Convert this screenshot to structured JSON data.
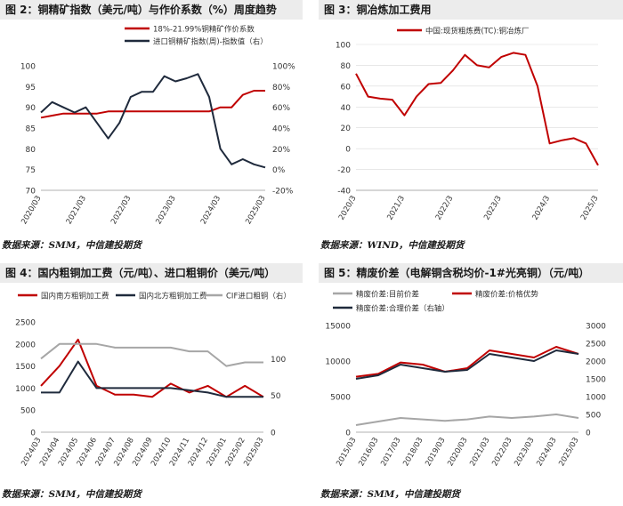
{
  "panels": [
    {
      "title": "图 2：铜精矿指数（美元/吨）与作价系数（%）周度趋势",
      "source": "数据来源：SMM，中信建投期货"
    },
    {
      "title": "图 3：铜冶炼加工费用",
      "source": "数据来源：WIND，中信建投期货"
    },
    {
      "title": "图 4：国内粗铜加工费（元/吨）、进口粗铜价（美元/吨）",
      "source": "数据来源：SMM，中信建投期货"
    },
    {
      "title": "图 5：精废价差（电解铜含税均价-1#光亮铜）（元/吨）",
      "source": "数据来源：SMM，中信建投期货"
    }
  ],
  "chart_data": [
    {
      "type": "line",
      "x": [
        "2020/03",
        "2020/06",
        "2020/09",
        "2020/12",
        "2021/03",
        "2021/06",
        "2021/09",
        "2021/12",
        "2022/03",
        "2022/06",
        "2022/09",
        "2022/12",
        "2023/03",
        "2023/06",
        "2023/09",
        "2023/12",
        "2024/03",
        "2024/06",
        "2024/09",
        "2024/12",
        "2025/03"
      ],
      "x_ticks": [
        "2020/03",
        "2021/03",
        "2022/03",
        "2023/03",
        "2024/03",
        "2025/03"
      ],
      "series": [
        {
          "name": "18%-21.99%铜精矿作价系数",
          "axis": "left",
          "color": "#c00000",
          "values": [
            87.5,
            88,
            88.5,
            88.5,
            88.5,
            88.5,
            89,
            89,
            89,
            89,
            89,
            89,
            89,
            89,
            89,
            89,
            90,
            90,
            93,
            94,
            94
          ]
        },
        {
          "name": "进口铜精矿指数(周)-指数值（右）",
          "axis": "right",
          "color": "#1f2a3c",
          "values": [
            55,
            65,
            60,
            55,
            60,
            45,
            30,
            45,
            70,
            75,
            75,
            90,
            85,
            88,
            92,
            70,
            20,
            5,
            10,
            5,
            2
          ]
        }
      ],
      "y_left": {
        "lim": [
          70,
          100
        ],
        "ticks": [
          70,
          75,
          80,
          85,
          90,
          95,
          100
        ]
      },
      "y_right": {
        "lim": [
          -20,
          100
        ],
        "ticks": [
          "-20%",
          "0%",
          "20%",
          "40%",
          "60%",
          "80%",
          "100%"
        ]
      },
      "legend": "top"
    },
    {
      "type": "line",
      "x": [
        "2020/3",
        "2020/6",
        "2020/9",
        "2020/12",
        "2021/3",
        "2021/6",
        "2021/9",
        "2021/12",
        "2022/3",
        "2022/6",
        "2022/9",
        "2022/12",
        "2023/3",
        "2023/6",
        "2023/9",
        "2023/12",
        "2024/3",
        "2024/6",
        "2024/9",
        "2024/12",
        "2025/3"
      ],
      "x_ticks": [
        "2020/3",
        "2021/3",
        "2022/3",
        "2023/3",
        "2024/3",
        "2025/3"
      ],
      "series": [
        {
          "name": "中国:现货粗炼费(TC):铜冶炼厂",
          "color": "#c00000",
          "values": [
            72,
            50,
            48,
            47,
            32,
            50,
            62,
            63,
            75,
            90,
            80,
            78,
            88,
            92,
            90,
            60,
            5,
            8,
            10,
            5,
            -16
          ]
        }
      ],
      "y_left": {
        "lim": [
          -40,
          100
        ],
        "ticks": [
          -40,
          -20,
          0,
          20,
          40,
          60,
          80,
          100
        ]
      },
      "legend": "top"
    },
    {
      "type": "line",
      "x": [
        "2024/03",
        "2024/04",
        "2024/05",
        "2024/06",
        "2024/07",
        "2024/08",
        "2024/09",
        "2024/10",
        "2024/11",
        "2024/12",
        "2025/01",
        "2025/02",
        "2025/03"
      ],
      "x_ticks": [
        "2024/03",
        "2024/04",
        "2024/05",
        "2024/06",
        "2024/07",
        "2024/08",
        "2024/09",
        "2024/10",
        "2024/11",
        "2024/12",
        "2025/01",
        "2025/02",
        "2025/03"
      ],
      "series": [
        {
          "name": "国内南方粗铜加工费",
          "axis": "left",
          "color": "#c00000",
          "values": [
            1050,
            1500,
            2100,
            1050,
            850,
            850,
            800,
            1100,
            900,
            1050,
            800,
            1050,
            800
          ]
        },
        {
          "name": "国内北方粗铜加工费",
          "axis": "left",
          "color": "#1f2a3c",
          "values": [
            900,
            900,
            1600,
            1000,
            1000,
            1000,
            1000,
            1000,
            950,
            900,
            800,
            800,
            800
          ]
        },
        {
          "name": "CIF进口粗铜（右）",
          "axis": "right",
          "color": "#a6a6a6",
          "values": [
            100,
            120,
            120,
            120,
            115,
            115,
            115,
            115,
            110,
            110,
            90,
            95,
            95
          ]
        }
      ],
      "y_left": {
        "lim": [
          0,
          2500
        ],
        "ticks": [
          0,
          500,
          1000,
          1500,
          2000,
          2500
        ]
      },
      "y_right": {
        "lim": [
          0,
          150
        ],
        "ticks": [
          0,
          50,
          100
        ]
      },
      "legend": "top"
    },
    {
      "type": "line",
      "x": [
        "2015/03",
        "2016/03",
        "2017/03",
        "2018/03",
        "2019/03",
        "2020/03",
        "2021/03",
        "2022/03",
        "2023/03",
        "2024/03",
        "2025/03"
      ],
      "x_ticks": [
        "2015/03",
        "2016/03",
        "2017/03",
        "2018/03",
        "2019/03",
        "2020/03",
        "2021/03",
        "2022/03",
        "2023/03",
        "2024/03",
        "2025/03"
      ],
      "series": [
        {
          "name": "精废价差:目前价差",
          "axis": "left",
          "color": "#a6a6a6",
          "values": [
            1000,
            1500,
            2000,
            1800,
            1600,
            1800,
            2200,
            2000,
            2200,
            2500,
            2000
          ]
        },
        {
          "name": "精废价差:价格优势",
          "axis": "left",
          "color": "#c00000",
          "values": [
            7800,
            8200,
            9800,
            9500,
            8500,
            9000,
            11500,
            11000,
            10500,
            12000,
            11000
          ]
        },
        {
          "name": "精废价差:合理价差（右轴）",
          "axis": "right",
          "color": "#1f2a3c",
          "values": [
            1500,
            1600,
            1900,
            1800,
            1700,
            1750,
            2200,
            2100,
            2000,
            2300,
            2200
          ]
        }
      ],
      "y_left": {
        "lim": [
          0,
          15000
        ],
        "ticks": [
          0,
          5000,
          10000,
          15000
        ]
      },
      "y_right": {
        "lim": [
          0,
          3000
        ],
        "ticks": [
          0,
          500,
          1000,
          1500,
          2000,
          2500,
          3000
        ]
      },
      "legend": "top"
    }
  ]
}
